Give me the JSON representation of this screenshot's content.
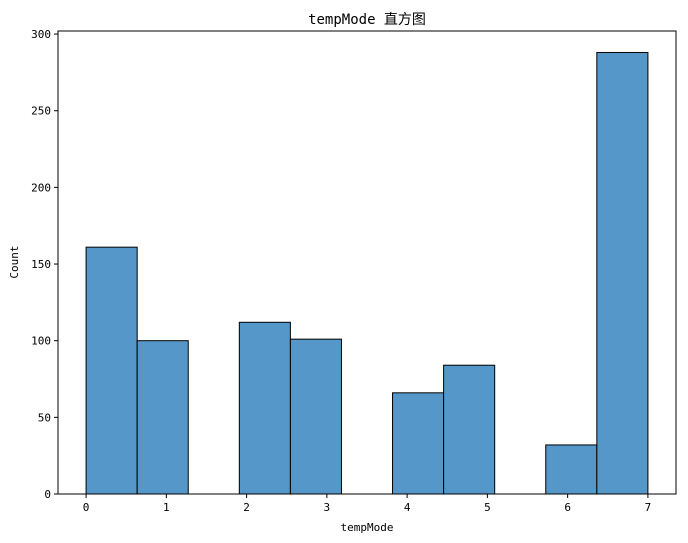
{
  "chart_data": {
    "type": "bar",
    "title": "tempMode 直方图",
    "xlabel": "tempMode",
    "ylabel": "Count",
    "xlim": [
      -0.35,
      7.35
    ],
    "ylim": [
      0,
      302
    ],
    "xticks": [
      0,
      1,
      2,
      3,
      4,
      5,
      6,
      7
    ],
    "yticks": [
      0,
      50,
      100,
      150,
      200,
      250,
      300
    ],
    "bin_edges": [
      0,
      0.6364,
      1.2727,
      1.9091,
      2.5455,
      3.1818,
      3.8182,
      4.4545,
      5.0909,
      5.7273,
      6.3636,
      7
    ],
    "values": [
      161,
      100,
      0,
      112,
      101,
      0,
      66,
      84,
      0,
      32,
      288
    ],
    "bar_color": "#5497c8",
    "edge_color": "#000000",
    "grid": false
  }
}
